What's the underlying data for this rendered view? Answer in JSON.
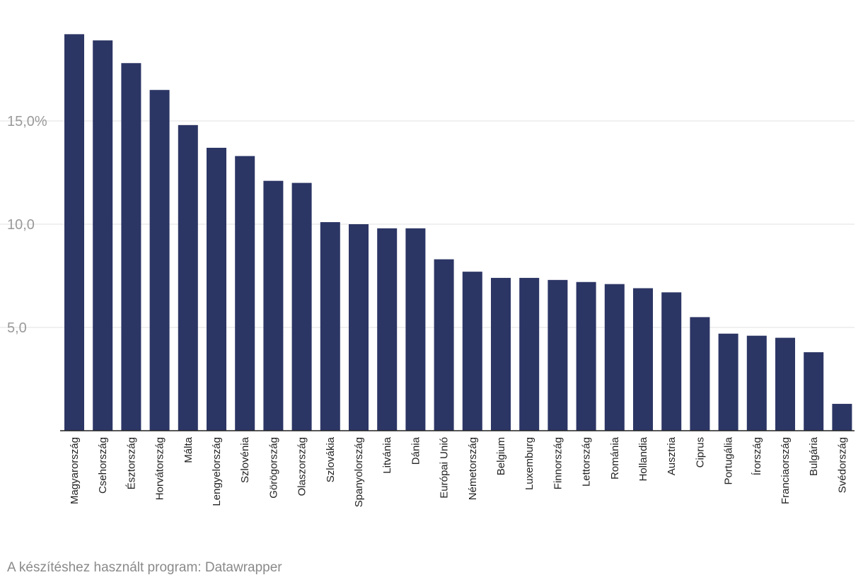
{
  "chart_data": {
    "type": "bar",
    "title": "",
    "xlabel": "",
    "ylabel": "",
    "ylim": [
      0,
      19.2
    ],
    "grid": true,
    "yticks": [
      5,
      10,
      15
    ],
    "ytick_labels": [
      "5,0",
      "10,0",
      "15,0%"
    ],
    "bar_color": "#2c3665",
    "categories": [
      "Magyarország",
      "Csehország",
      "Észtország",
      "Horvátország",
      "Málta",
      "Lengyelország",
      "Szlovénia",
      "Görögország",
      "Olaszország",
      "Szlovákia",
      "Spanyolország",
      "Litvánia",
      "Dánia",
      "Európai Unió",
      "Németország",
      "Belgium",
      "Luxemburg",
      "Finnország",
      "Lettország",
      "Románia",
      "Hollandia",
      "Ausztria",
      "Ciprus",
      "Portugália",
      "Írország",
      "Franciaország",
      "Bulgária",
      "Svédország"
    ],
    "values": [
      19.2,
      18.9,
      17.8,
      16.5,
      14.8,
      13.7,
      13.3,
      12.1,
      12.0,
      10.1,
      10.0,
      9.8,
      9.8,
      8.3,
      7.7,
      7.4,
      7.4,
      7.3,
      7.2,
      7.1,
      6.9,
      6.7,
      5.5,
      4.7,
      4.6,
      4.5,
      3.8,
      1.3
    ]
  },
  "footer": "A készítéshez használt program: Datawrapper"
}
